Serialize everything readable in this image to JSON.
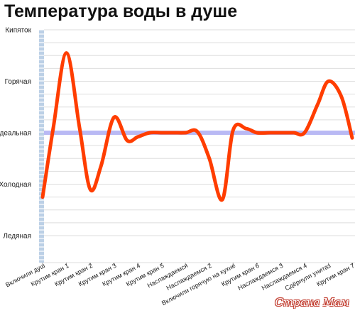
{
  "title": "Температура воды в душе",
  "watermark": "Страна Мам",
  "colors": {
    "line": "#ff3d00",
    "ideal_band": "#b9b9f4",
    "grid": "#dedede",
    "left_bar": "#bcd0e6",
    "text": "#222222"
  },
  "chart_data": {
    "type": "line",
    "title": "Температура воды в душе",
    "y_levels": [
      "Ледяная",
      "Холодная",
      "Идеальная",
      "Горячая",
      "Кипяток"
    ],
    "ylim": [
      0,
      4
    ],
    "ideal_level": 2,
    "categories": [
      "Включили душ",
      "Крутим кран 1",
      "Крутим кран 2",
      "Крутим кран 3",
      "Крутим кран 4",
      "Крутим кран 5",
      "Наслаждаемся",
      "Наслаждаемся 2",
      "Включили горячую на кухне",
      "Крутим кран 6",
      "Наслаждаемся 3",
      "Наслаждаемся 4",
      "Сдёрнули унитаз",
      "Крутим кран 7"
    ],
    "series": [
      {
        "x": [
          0,
          0.45,
          1,
          1.55,
          2,
          2.45,
          3,
          3.55,
          4,
          4.5,
          5,
          5.5,
          6,
          6.5,
          7,
          7.55,
          8,
          8.55,
          9,
          9.55,
          10,
          10.55,
          11,
          11.55,
          12,
          12.55,
          13
        ],
        "values": [
          0.75,
          2.1,
          3.55,
          2.1,
          0.9,
          1.35,
          2.3,
          1.85,
          1.92,
          2,
          2,
          2,
          2,
          2.02,
          1.5,
          0.7,
          2.05,
          2.08,
          2,
          2,
          2,
          2,
          2,
          2.55,
          3.0,
          2.7,
          1.9
        ]
      }
    ],
    "grid": true,
    "legend": "none"
  }
}
